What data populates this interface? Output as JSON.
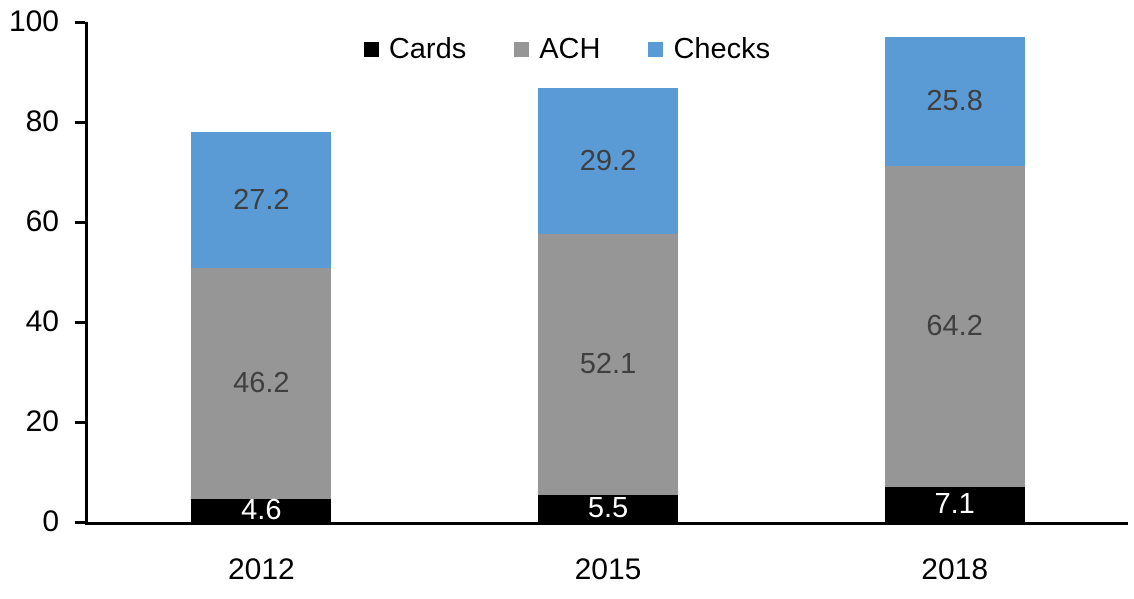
{
  "chart_data": {
    "type": "bar",
    "stacked": true,
    "title": "",
    "xlabel": "",
    "ylabel": "",
    "categories": [
      "2012",
      "2015",
      "2018"
    ],
    "series": [
      {
        "name": "Cards",
        "values": [
          4.6,
          5.5,
          7.1
        ],
        "color": "#000000",
        "label_color": "#ffffff"
      },
      {
        "name": "ACH",
        "values": [
          46.2,
          52.1,
          64.2
        ],
        "color": "#969696",
        "label_color": "#3f3f3f"
      },
      {
        "name": "Checks",
        "values": [
          27.2,
          29.2,
          25.8
        ],
        "color": "#5b9bd5",
        "label_color": "#3f3f3f"
      }
    ],
    "ylim": [
      0,
      100
    ],
    "yticks": [
      0,
      20,
      40,
      60,
      80,
      100
    ],
    "grid": false,
    "legend_position": "top",
    "data_labels": true,
    "axis_color": "#000000"
  }
}
